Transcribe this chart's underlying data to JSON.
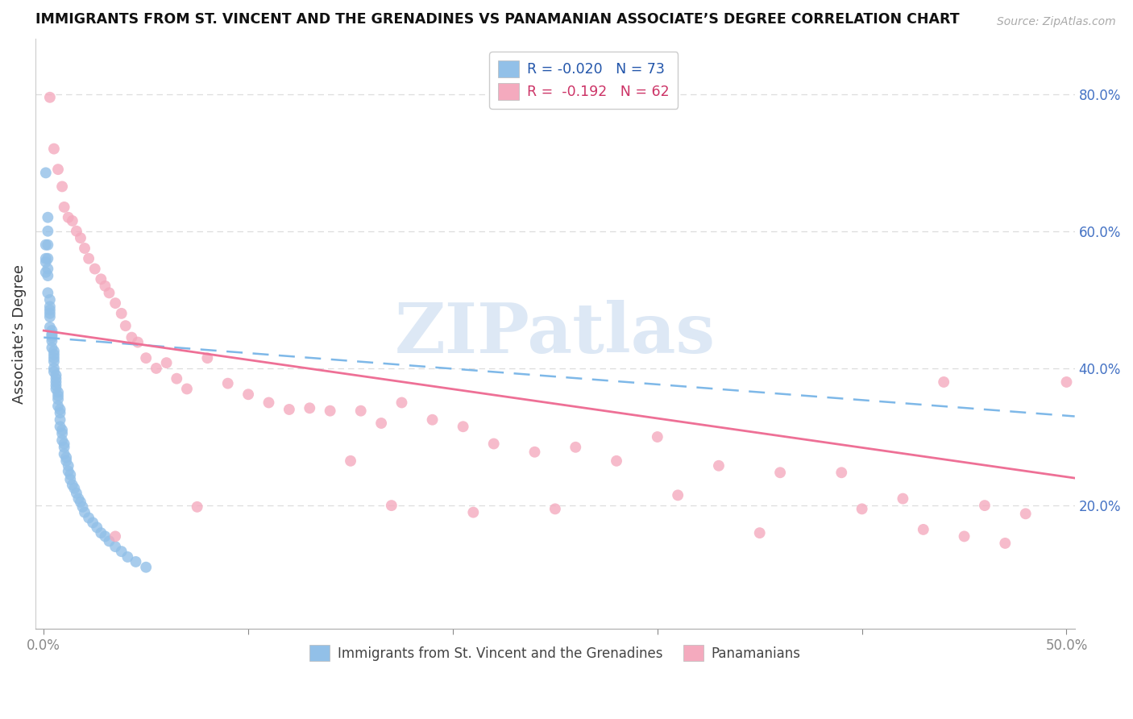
{
  "title": "IMMIGRANTS FROM ST. VINCENT AND THE GRENADINES VS PANAMANIAN ASSOCIATE’S DEGREE CORRELATION CHART",
  "source": "Source: ZipAtlas.com",
  "ylabel": "Associate’s Degree",
  "right_yticks": [
    0.8,
    0.6,
    0.4,
    0.2
  ],
  "right_yticklabels": [
    "80.0%",
    "60.0%",
    "40.0%",
    "20.0%"
  ],
  "xlim": [
    -0.004,
    0.504
  ],
  "ylim": [
    0.02,
    0.88
  ],
  "blue_color": "#92C0E8",
  "pink_color": "#F4AABE",
  "blue_N": 73,
  "pink_N": 62,
  "legend_labels": [
    "Immigrants from St. Vincent and the Grenadines",
    "Panamanians"
  ],
  "watermark": "ZIPatlas",
  "grid_color": "#DDDDDD",
  "blue_trend_color": "#7EB8E8",
  "pink_trend_color": "#EE7096",
  "trend_blue_x0": 0.0,
  "trend_blue_y0": 0.445,
  "trend_blue_x1": 0.504,
  "trend_blue_y1": 0.33,
  "trend_pink_x0": 0.0,
  "trend_pink_y0": 0.455,
  "trend_pink_x1": 0.504,
  "trend_pink_y1": 0.24,
  "blue_x": [
    0.001,
    0.001,
    0.001,
    0.001,
    0.001,
    0.002,
    0.002,
    0.002,
    0.002,
    0.002,
    0.002,
    0.002,
    0.003,
    0.003,
    0.003,
    0.003,
    0.003,
    0.003,
    0.004,
    0.004,
    0.004,
    0.004,
    0.004,
    0.004,
    0.005,
    0.005,
    0.005,
    0.005,
    0.005,
    0.005,
    0.006,
    0.006,
    0.006,
    0.006,
    0.006,
    0.007,
    0.007,
    0.007,
    0.007,
    0.008,
    0.008,
    0.008,
    0.008,
    0.009,
    0.009,
    0.009,
    0.01,
    0.01,
    0.01,
    0.011,
    0.011,
    0.012,
    0.012,
    0.013,
    0.013,
    0.014,
    0.015,
    0.016,
    0.017,
    0.018,
    0.019,
    0.02,
    0.022,
    0.024,
    0.026,
    0.028,
    0.03,
    0.032,
    0.035,
    0.038,
    0.041,
    0.045,
    0.05
  ],
  "blue_y": [
    0.685,
    0.58,
    0.56,
    0.555,
    0.54,
    0.62,
    0.6,
    0.58,
    0.56,
    0.545,
    0.535,
    0.51,
    0.5,
    0.49,
    0.485,
    0.48,
    0.475,
    0.46,
    0.455,
    0.45,
    0.448,
    0.445,
    0.44,
    0.43,
    0.425,
    0.42,
    0.415,
    0.41,
    0.4,
    0.395,
    0.39,
    0.385,
    0.38,
    0.375,
    0.37,
    0.365,
    0.36,
    0.355,
    0.345,
    0.34,
    0.335,
    0.325,
    0.315,
    0.31,
    0.305,
    0.295,
    0.29,
    0.285,
    0.275,
    0.27,
    0.265,
    0.258,
    0.25,
    0.245,
    0.238,
    0.23,
    0.225,
    0.218,
    0.21,
    0.205,
    0.198,
    0.19,
    0.182,
    0.175,
    0.168,
    0.16,
    0.155,
    0.148,
    0.14,
    0.133,
    0.125,
    0.118,
    0.11
  ],
  "pink_x": [
    0.003,
    0.005,
    0.007,
    0.009,
    0.01,
    0.012,
    0.014,
    0.016,
    0.018,
    0.02,
    0.022,
    0.025,
    0.028,
    0.03,
    0.032,
    0.035,
    0.038,
    0.04,
    0.043,
    0.046,
    0.05,
    0.055,
    0.06,
    0.065,
    0.07,
    0.08,
    0.09,
    0.1,
    0.11,
    0.12,
    0.13,
    0.14,
    0.155,
    0.165,
    0.175,
    0.19,
    0.205,
    0.22,
    0.24,
    0.26,
    0.28,
    0.3,
    0.33,
    0.36,
    0.39,
    0.42,
    0.44,
    0.46,
    0.48,
    0.5,
    0.15,
    0.17,
    0.21,
    0.25,
    0.31,
    0.35,
    0.4,
    0.43,
    0.45,
    0.47,
    0.035,
    0.075
  ],
  "pink_y": [
    0.795,
    0.72,
    0.69,
    0.665,
    0.635,
    0.62,
    0.615,
    0.6,
    0.59,
    0.575,
    0.56,
    0.545,
    0.53,
    0.52,
    0.51,
    0.495,
    0.48,
    0.462,
    0.445,
    0.438,
    0.415,
    0.4,
    0.408,
    0.385,
    0.37,
    0.415,
    0.378,
    0.362,
    0.35,
    0.34,
    0.342,
    0.338,
    0.338,
    0.32,
    0.35,
    0.325,
    0.315,
    0.29,
    0.278,
    0.285,
    0.265,
    0.3,
    0.258,
    0.248,
    0.248,
    0.21,
    0.38,
    0.2,
    0.188,
    0.38,
    0.265,
    0.2,
    0.19,
    0.195,
    0.215,
    0.16,
    0.195,
    0.165,
    0.155,
    0.145,
    0.155,
    0.198
  ]
}
